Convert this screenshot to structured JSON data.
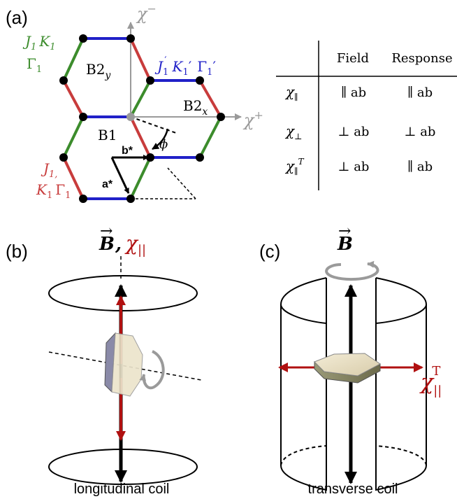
{
  "colors": {
    "green": "#3c8c2c",
    "red": "#c83c3c",
    "blue": "#2020c8",
    "black": "#000000",
    "grey": "#9a9a9a",
    "dark_red": "#b01010"
  },
  "panel_a": {
    "tag": "(a)",
    "axes": {
      "chi_minus": "χ",
      "chi_minus_sup": "−",
      "chi_plus": "χ",
      "chi_plus_sup": "+"
    },
    "green_bond": {
      "l1_a": "J",
      "l1_a_sub": "1",
      "l1_b": "K",
      "l1_b_sub": "1",
      "l2": "Γ",
      "l2_sub": "1"
    },
    "blue_bond": {
      "a": "J",
      "a_sub": "1",
      "a_prime": "′",
      "b": "K",
      "b_sub": "1",
      "b_prime": "′",
      "c": "Γ",
      "c_sub": "1",
      "c_prime": "′"
    },
    "red_bond": {
      "l1_a": "J",
      "l1_a_sub": "1,",
      "l2_a": "K",
      "l2_a_sub": "1",
      "l2_b": "Γ",
      "l2_b_sub": "1"
    },
    "b2y": "B2",
    "b2y_sub": "y",
    "b2x": "B2",
    "b2x_sub": "x",
    "b1": "B1",
    "bstar": "b*",
    "astar": "a*",
    "phi": "ϕ"
  },
  "table": {
    "headers": [
      "Field",
      "Response"
    ],
    "rows": [
      {
        "label": "χ",
        "label_sub": "∥",
        "label_sup": "",
        "field": "∥ ab",
        "response": "∥ ab"
      },
      {
        "label": "χ",
        "label_sub": "⊥",
        "label_sup": "",
        "field": "⊥ ab",
        "response": "⊥ ab"
      },
      {
        "label": "χ",
        "label_sub": "∥",
        "label_sup": "T",
        "field": "⊥ ab",
        "response": "∥ ab"
      }
    ]
  },
  "panel_b": {
    "tag": "(b)",
    "field_label": "B",
    "arrow_glyph": "→",
    "comma": ",",
    "chi": "χ",
    "chi_sub": "||",
    "caption": "longitudinal coil"
  },
  "panel_c": {
    "tag": "(c)",
    "field_label": "B",
    "arrow_glyph": "→",
    "chi": "χ",
    "chi_sub": "||",
    "chi_sup": "T",
    "caption": "transverse coil"
  }
}
